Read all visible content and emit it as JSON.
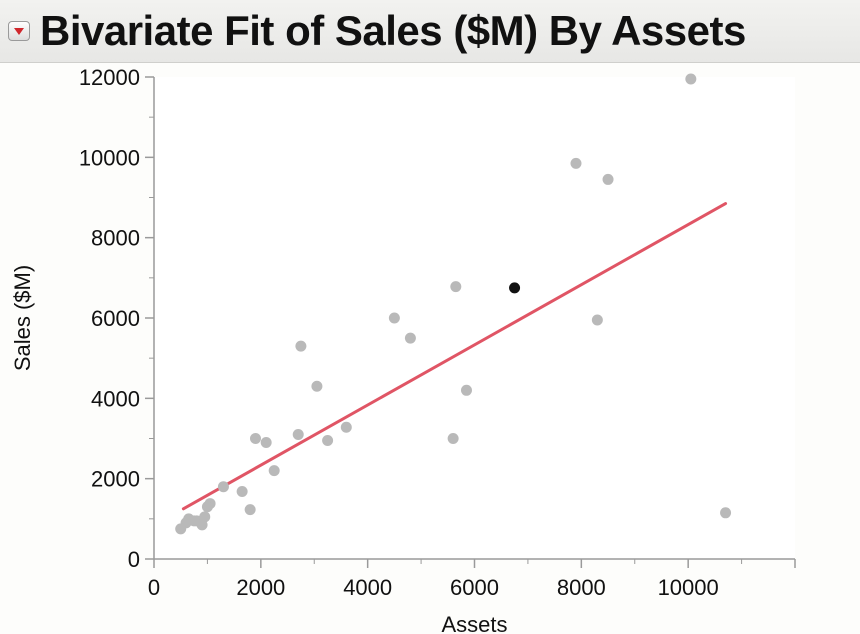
{
  "header": {
    "title": "Bivariate Fit of Sales ($M) By Assets",
    "menu_icon": "disclosure-triangle-icon"
  },
  "chart_data": {
    "type": "scatter",
    "title": "Bivariate Fit of Sales ($M) By Assets",
    "xlabel": "Assets",
    "ylabel": "Sales ($M)",
    "xlim": [
      0,
      12000
    ],
    "ylim": [
      0,
      12000
    ],
    "x_ticks": [
      "0",
      "2000",
      "4000",
      "6000",
      "8000",
      "10000"
    ],
    "y_ticks": [
      "0",
      "2000",
      "4000",
      "6000",
      "8000",
      "10000",
      "12000"
    ],
    "grid": false,
    "points": [
      {
        "x": 10050,
        "y": 11950
      },
      {
        "x": 7900,
        "y": 9850
      },
      {
        "x": 8500,
        "y": 9450
      },
      {
        "x": 8300,
        "y": 5950
      },
      {
        "x": 10700,
        "y": 1150
      },
      {
        "x": 6750,
        "y": 6750,
        "highlighted": true
      },
      {
        "x": 5650,
        "y": 6780
      },
      {
        "x": 4500,
        "y": 6000
      },
      {
        "x": 4800,
        "y": 5500
      },
      {
        "x": 5850,
        "y": 4200
      },
      {
        "x": 5600,
        "y": 3000
      },
      {
        "x": 2750,
        "y": 5300
      },
      {
        "x": 3050,
        "y": 4300
      },
      {
        "x": 3600,
        "y": 3280
      },
      {
        "x": 3250,
        "y": 2950
      },
      {
        "x": 2700,
        "y": 3100
      },
      {
        "x": 1900,
        "y": 3000
      },
      {
        "x": 2100,
        "y": 2900
      },
      {
        "x": 2250,
        "y": 2200
      },
      {
        "x": 1650,
        "y": 1680
      },
      {
        "x": 1800,
        "y": 1230
      },
      {
        "x": 1300,
        "y": 1800
      },
      {
        "x": 1050,
        "y": 1380
      },
      {
        "x": 1000,
        "y": 1300
      },
      {
        "x": 950,
        "y": 1050
      },
      {
        "x": 800,
        "y": 950
      },
      {
        "x": 650,
        "y": 1000
      },
      {
        "x": 600,
        "y": 900
      },
      {
        "x": 900,
        "y": 850
      },
      {
        "x": 750,
        "y": 950
      },
      {
        "x": 500,
        "y": 750
      }
    ],
    "fit_line": {
      "x": [
        550,
        10700
      ],
      "y": [
        1250,
        8850
      ]
    },
    "colors": {
      "points": "#b9b9b9",
      "highlight": "#111111",
      "fit_line": "#e05565",
      "axis": "#9a9a9a"
    }
  }
}
